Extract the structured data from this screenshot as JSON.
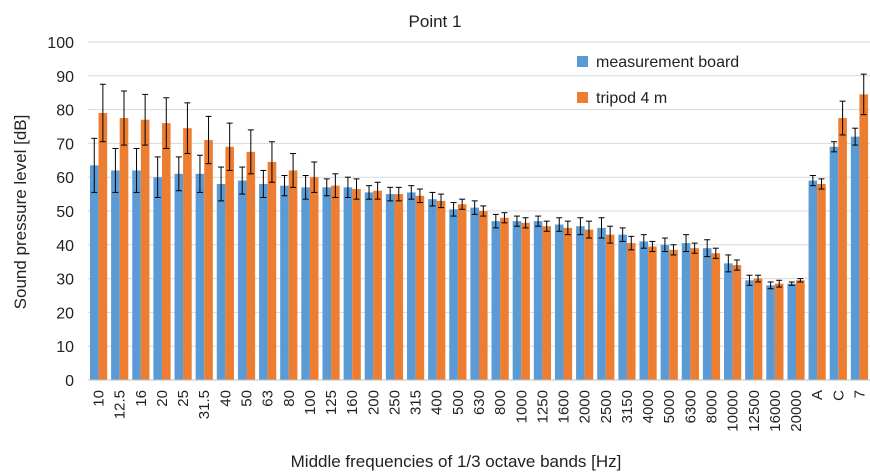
{
  "chart_data": {
    "type": "bar",
    "title": "Point 1",
    "xlabel": "Middle frequencies of 1/3 octave bands [Hz]",
    "ylabel": "Sound pressure level [dB]",
    "ylim": [
      0,
      100
    ],
    "yticks": [
      0,
      10,
      20,
      30,
      40,
      50,
      60,
      70,
      80,
      90,
      100
    ],
    "grid": true,
    "legend_position": "top-right",
    "categories": [
      "10",
      "12.5",
      "16",
      "20",
      "25",
      "31.5",
      "40",
      "50",
      "63",
      "80",
      "100",
      "125",
      "160",
      "200",
      "250",
      "315",
      "400",
      "500",
      "630",
      "800",
      "1000",
      "1250",
      "1600",
      "2000",
      "2500",
      "3150",
      "4000",
      "5000",
      "6300",
      "8000",
      "10000",
      "12500",
      "16000",
      "20000",
      "A",
      "C",
      "7"
    ],
    "series": [
      {
        "name": "measurement board",
        "color": "#5B9BD5",
        "values": [
          63.5,
          62,
          62,
          60,
          61,
          61,
          58,
          59,
          58,
          57.5,
          57,
          57,
          57,
          55.5,
          55,
          55.5,
          53.5,
          50.5,
          51,
          47,
          47,
          47,
          46,
          45.5,
          45,
          43,
          41,
          40,
          40.5,
          39,
          34.5,
          29.5,
          28,
          28.5,
          59,
          69,
          72
        ],
        "error": [
          8,
          6.5,
          6.5,
          6,
          5,
          5.5,
          5,
          4,
          4,
          3,
          3.5,
          2.5,
          3,
          2,
          2,
          2,
          2,
          2,
          2,
          2,
          1.5,
          1.5,
          2,
          2.5,
          3,
          2,
          2,
          2,
          2.5,
          2.5,
          2.5,
          1.5,
          1,
          0.5,
          1.5,
          1.5,
          2.5
        ]
      },
      {
        "name": "tripod 4 m",
        "color": "#ED7D31",
        "values": [
          79,
          77.5,
          77,
          76,
          74.5,
          71,
          69,
          67.5,
          64.5,
          62,
          60,
          57.5,
          56.5,
          56,
          55,
          54.5,
          53,
          52,
          50,
          48,
          46.5,
          45.5,
          45,
          44.5,
          43,
          40.5,
          39.5,
          38.5,
          39,
          37.5,
          34,
          30,
          28.5,
          29.5,
          58,
          77.5,
          84.5
        ],
        "error": [
          8.5,
          8,
          7.5,
          7.5,
          7.5,
          7,
          7,
          6.5,
          6,
          5,
          4.5,
          3.5,
          3,
          2.5,
          2,
          2,
          2,
          1.5,
          1.5,
          1.5,
          1.5,
          1.5,
          2,
          2.5,
          2.5,
          2,
          1.5,
          1.5,
          1.5,
          1.5,
          1.5,
          1,
          1,
          0.5,
          1.5,
          5,
          6
        ]
      }
    ]
  }
}
